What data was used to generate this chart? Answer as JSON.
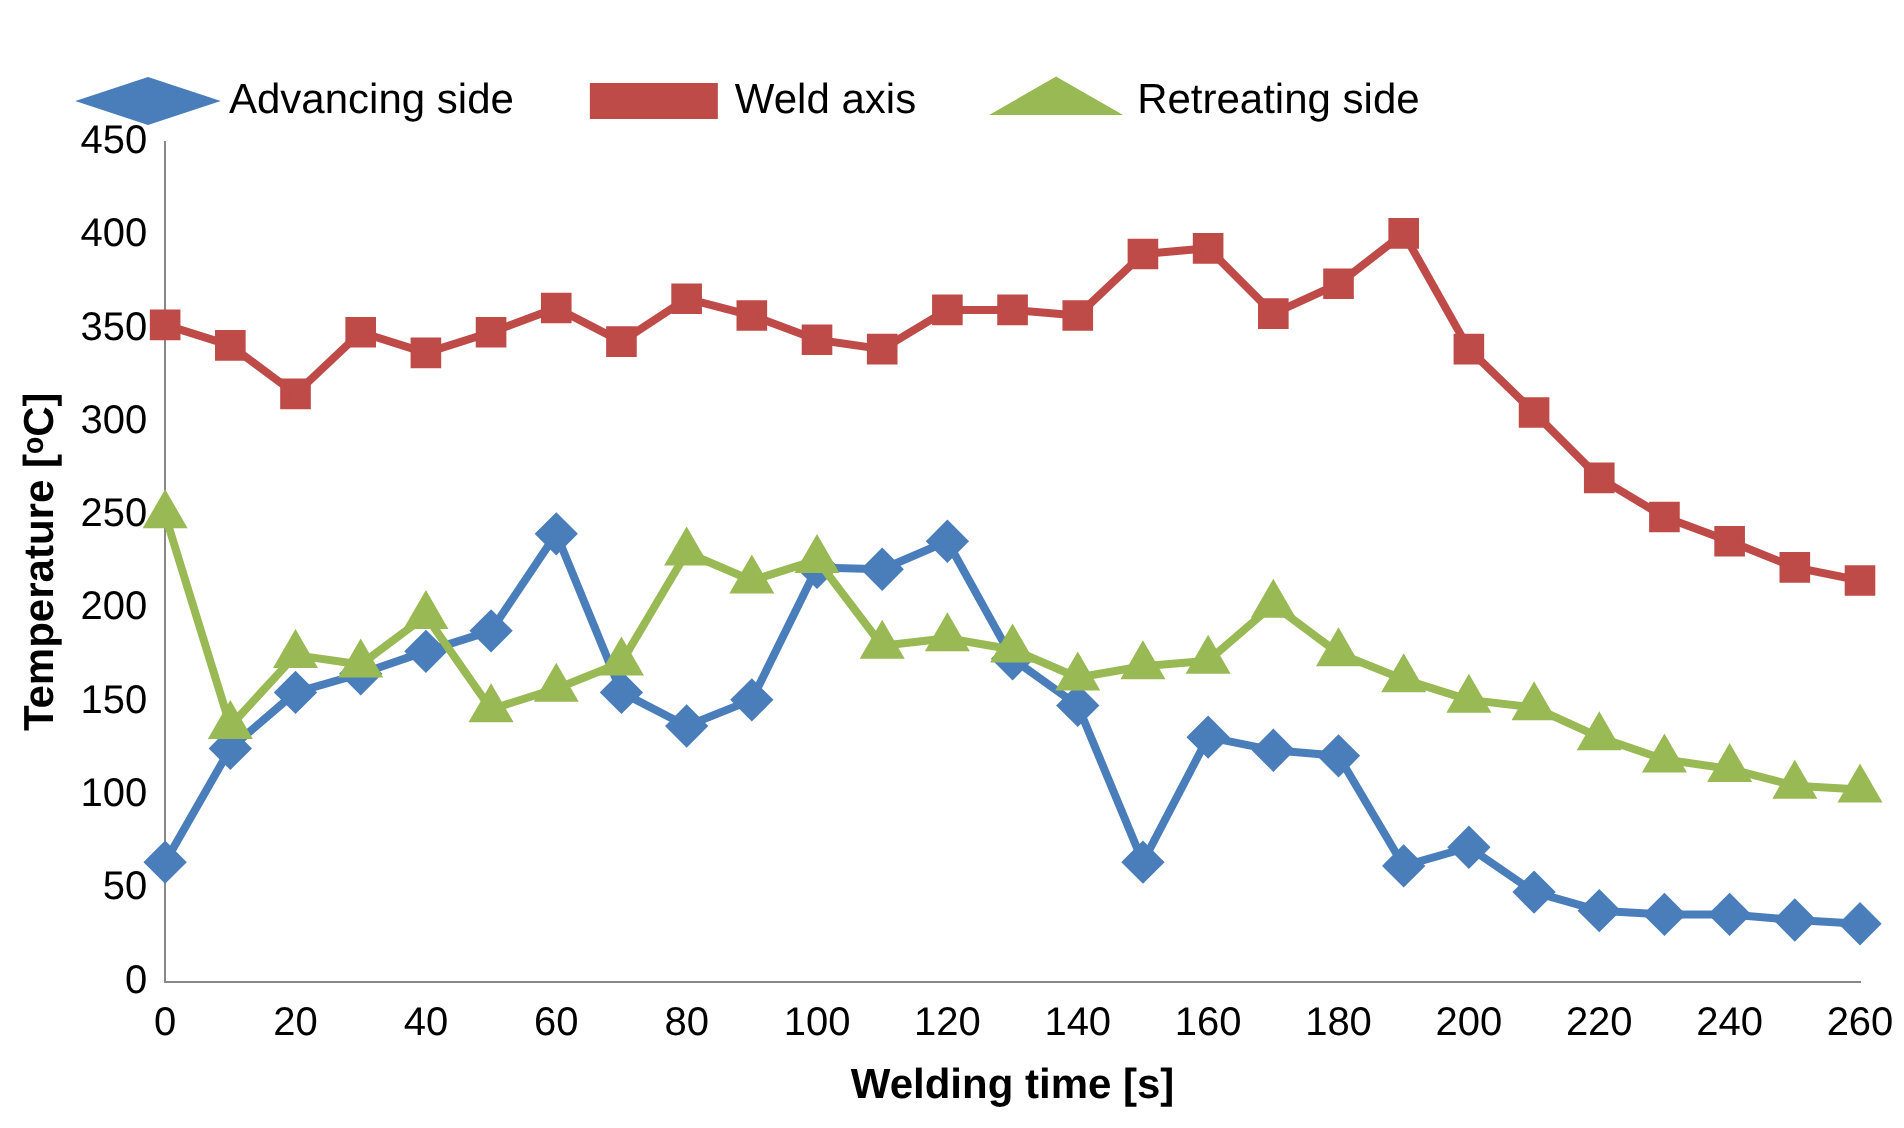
{
  "chart_data": {
    "type": "line",
    "xlabel": "Welding time [s]",
    "ylabel": "Temperature [ᵒC]",
    "categories": [
      "0",
      null,
      "20",
      null,
      "40",
      null,
      "60",
      null,
      "80",
      null,
      "100",
      null,
      "120",
      null,
      "140",
      null,
      "160",
      null,
      "180",
      null,
      "200",
      null,
      "220",
      null,
      "240",
      null,
      "260"
    ],
    "series": [
      {
        "name": "Advancing side",
        "color": "#4a7ebb",
        "marker": "diamond",
        "values": [
          64,
          125,
          155,
          165,
          177,
          188,
          240,
          155,
          137,
          151,
          222,
          221,
          236,
          173,
          148,
          64,
          131,
          124,
          121,
          62,
          72,
          48,
          38,
          36,
          36,
          33,
          31
        ]
      },
      {
        "name": "Weld axis",
        "color": "#be4b48",
        "marker": "square",
        "values": [
          352,
          341,
          315,
          348,
          337,
          348,
          361,
          343,
          366,
          357,
          344,
          339,
          360,
          360,
          357,
          390,
          393,
          358,
          374,
          401,
          339,
          305,
          270,
          249,
          236,
          222,
          215
        ]
      },
      {
        "name": "Retreating side",
        "color": "#98b954",
        "marker": "triangle",
        "values": [
          250,
          137,
          175,
          170,
          196,
          146,
          157,
          171,
          230,
          215,
          226,
          180,
          184,
          178,
          163,
          169,
          172,
          202,
          176,
          162,
          151,
          147,
          131,
          119,
          114,
          105,
          103
        ]
      }
    ],
    "ylim": [
      0,
      450
    ],
    "yticks": [
      0,
      50,
      100,
      150,
      200,
      250,
      300,
      350,
      400,
      450
    ],
    "grid": false,
    "legend": "top",
    "line_style": "solid"
  }
}
